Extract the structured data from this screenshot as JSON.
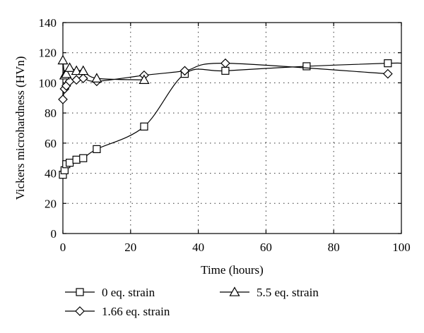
{
  "chart_data": {
    "type": "line",
    "xlabel": "Time (hours)",
    "ylabel": "Vickers microhardness (HVn)",
    "xlim": [
      0,
      100
    ],
    "ylim": [
      0,
      140
    ],
    "xticks": [
      0,
      20,
      40,
      60,
      80,
      100
    ],
    "yticks": [
      0,
      20,
      40,
      60,
      80,
      100,
      120,
      140
    ],
    "grid": "dotted",
    "legend_position": "bottom",
    "series": [
      {
        "name": "0 eq. strain",
        "marker": "square",
        "x": [
          0,
          0.5,
          1,
          2,
          4,
          6,
          10,
          24,
          36,
          48,
          72,
          96
        ],
        "y": [
          39,
          42,
          46,
          47,
          49,
          50,
          56,
          71,
          106,
          108,
          111,
          113
        ]
      },
      {
        "name": "1.66 eq. strain",
        "marker": "diamond",
        "x": [
          0,
          0.5,
          1,
          2,
          4,
          6,
          10,
          24,
          36,
          48,
          96
        ],
        "y": [
          89,
          96,
          98,
          101,
          102,
          103,
          101,
          105,
          108,
          113,
          106
        ]
      },
      {
        "name": "5.5 eq. strain",
        "marker": "triangle",
        "x": [
          0,
          0.5,
          1,
          2,
          4,
          6,
          10,
          24
        ],
        "y": [
          115,
          105,
          106,
          110,
          108,
          108,
          103,
          102
        ]
      }
    ]
  }
}
